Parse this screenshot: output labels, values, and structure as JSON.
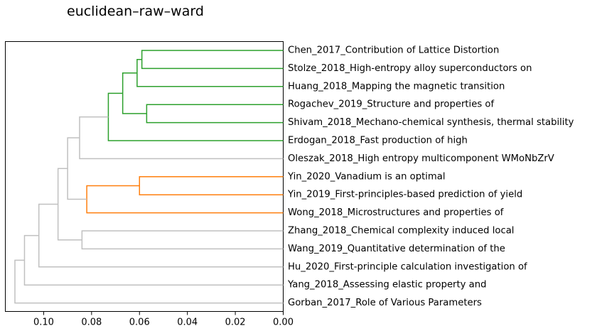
{
  "chart_data": {
    "type": "dendrogram",
    "title": "euclidean–raw–ward",
    "orientation": "left",
    "xlim": [
      0.116,
      0.0
    ],
    "xticks": [
      0.1,
      0.08,
      0.06,
      0.04,
      0.02,
      0.0
    ],
    "xtick_labels": [
      "0.10",
      "0.08",
      "0.06",
      "0.04",
      "0.02",
      "0.00"
    ],
    "leaves": [
      "Chen_2017_Contribution of Lattice Distortion",
      "Stolze_2018_High-entropy alloy superconductors on",
      "Huang_2018_Mapping the magnetic transition",
      "Rogachev_2019_Structure and properties of",
      "Shivam_2018_Mechano-chemical synthesis, thermal stability",
      "Erdogan_2018_Fast production of high",
      "Oleszak_2018_High entropy multicomponent WMoNbZrV",
      "Yin_2020_Vanadium is an optimal",
      "Yin_2019_First-principles-based prediction of yield",
      "Wong_2018_Microstructures and properties of",
      "Zhang_2018_Chemical complexity induced local",
      "Wang_2019_Quantitative determination of the",
      "Hu_2020_First-principle calculation investigation of",
      "Yang_2018_Assessing elastic property and",
      "Gorban_2017_Role of Various Parameters"
    ],
    "merges": [
      {
        "id": "m1",
        "a": "L0",
        "b": "L1",
        "height": 0.059,
        "color": "#2ca02c"
      },
      {
        "id": "m2",
        "a": "m1",
        "b": "L2",
        "height": 0.061,
        "color": "#2ca02c"
      },
      {
        "id": "m3",
        "a": "L3",
        "b": "L4",
        "height": 0.057,
        "color": "#2ca02c"
      },
      {
        "id": "m4",
        "a": "m2",
        "b": "m3",
        "height": 0.067,
        "color": "#2ca02c"
      },
      {
        "id": "m5",
        "a": "m4",
        "b": "L5",
        "height": 0.073,
        "color": "#2ca02c"
      },
      {
        "id": "m6",
        "a": "m5",
        "b": "L6",
        "height": 0.085,
        "color": "#c0c0c0"
      },
      {
        "id": "m7",
        "a": "L7",
        "b": "L8",
        "height": 0.06,
        "color": "#ff7f0e"
      },
      {
        "id": "m8",
        "a": "m7",
        "b": "L9",
        "height": 0.082,
        "color": "#ff7f0e"
      },
      {
        "id": "m9",
        "a": "m6",
        "b": "m8",
        "height": 0.09,
        "color": "#c0c0c0"
      },
      {
        "id": "m10",
        "a": "L10",
        "b": "L11",
        "height": 0.084,
        "color": "#c0c0c0"
      },
      {
        "id": "m11",
        "a": "m9",
        "b": "m10",
        "height": 0.094,
        "color": "#c0c0c0"
      },
      {
        "id": "m12",
        "a": "m11",
        "b": "L12",
        "height": 0.102,
        "color": "#c0c0c0"
      },
      {
        "id": "m13",
        "a": "m12",
        "b": "L13",
        "height": 0.108,
        "color": "#c0c0c0"
      },
      {
        "id": "m14",
        "a": "m13",
        "b": "L14",
        "height": 0.112,
        "color": "#c0c0c0"
      }
    ]
  }
}
